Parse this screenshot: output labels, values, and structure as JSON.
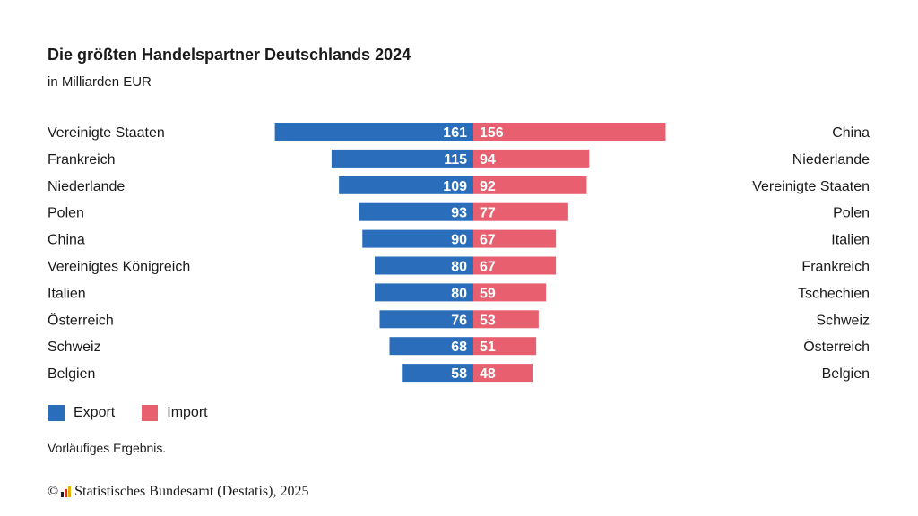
{
  "chart_data": [
    {
      "type": "bar",
      "title": "Die größten Handelspartner Deutschlands 2024",
      "subtitle": "in Milliarden EUR",
      "orientation": "horizontal",
      "side": "left",
      "series": [
        {
          "name": "Export",
          "color": "#2a6ebb",
          "categories": [
            "Vereinigte Staaten",
            "Frankreich",
            "Niederlande",
            "Polen",
            "China",
            "Vereinigtes Königreich",
            "Italien",
            "Österreich",
            "Schweiz",
            "Belgien"
          ],
          "values": [
            161,
            115,
            109,
            93,
            90,
            80,
            80,
            76,
            68,
            58
          ]
        }
      ]
    },
    {
      "type": "bar",
      "orientation": "horizontal",
      "side": "right",
      "series": [
        {
          "name": "Import",
          "color": "#e8606f",
          "categories": [
            "China",
            "Niederlande",
            "Vereinigte Staaten",
            "Polen",
            "Italien",
            "Frankreich",
            "Tschechien",
            "Schweiz",
            "Österreich",
            "Belgien"
          ],
          "values": [
            156,
            94,
            92,
            77,
            67,
            67,
            59,
            53,
            51,
            48
          ]
        }
      ]
    }
  ],
  "legend": {
    "export": "Export",
    "import": "Import"
  },
  "note": "Vorläufiges Ergebnis.",
  "credit": {
    "symbol": "©",
    "text": "Statistisches Bundesamt (Destatis), 2025"
  }
}
